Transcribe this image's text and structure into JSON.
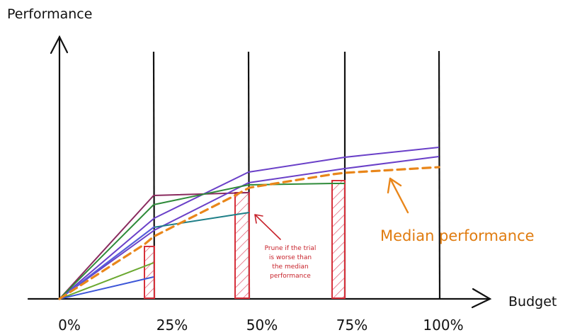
{
  "axes": {
    "y_label": "Performance",
    "x_label": "Budget",
    "ticks": [
      "0%",
      "25%",
      "50%",
      "75%",
      "100%"
    ]
  },
  "annotations": {
    "prune_note": [
      "Prune if the trial",
      "is worse than",
      "the median",
      "performance"
    ],
    "median_label": "Median performance"
  },
  "colors": {
    "axis": "#111111",
    "prune": "#d6303a",
    "median": "#e9861a",
    "trials": [
      "#8a2a5e",
      "#6a40c8",
      "#2f8b3a",
      "#1f7f88",
      "#5a5ae0",
      "#6aa830",
      "#3c56d8"
    ]
  }
}
